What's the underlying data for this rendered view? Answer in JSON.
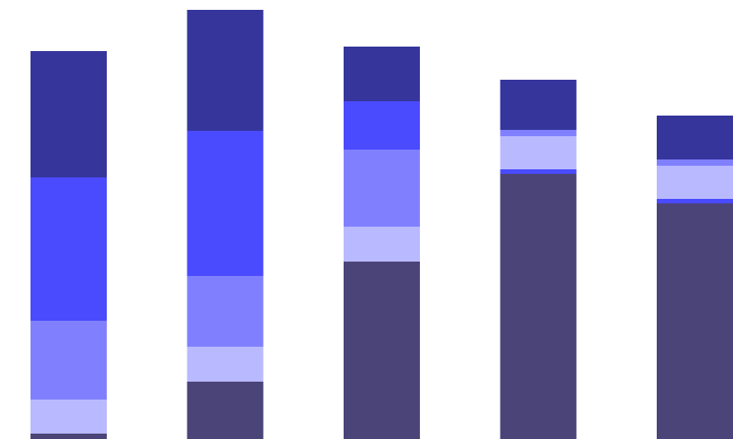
{
  "chart_data": {
    "type": "bar",
    "stacked": true,
    "categories": [
      "",
      "",
      "",
      "",
      ""
    ],
    "series": [
      {
        "color": "#4b4478",
        "values": [
          6,
          64,
          198,
          296,
          263
        ]
      },
      {
        "color": "#4a4aff",
        "values": [
          0,
          0,
          0,
          5,
          5
        ]
      },
      {
        "color": "#b9b9ff",
        "values": [
          38,
          39,
          39,
          37,
          37
        ]
      },
      {
        "color": "#8080ff",
        "values": [
          88,
          79,
          86,
          7,
          7
        ]
      },
      {
        "color": "#4a4aff",
        "values": [
          160,
          162,
          54,
          0,
          0
        ]
      },
      {
        "color": "#35359c",
        "values": [
          141,
          135,
          61,
          56,
          49
        ]
      }
    ],
    "ylim": [
      0,
      490
    ],
    "grid": false,
    "legend": "none"
  }
}
